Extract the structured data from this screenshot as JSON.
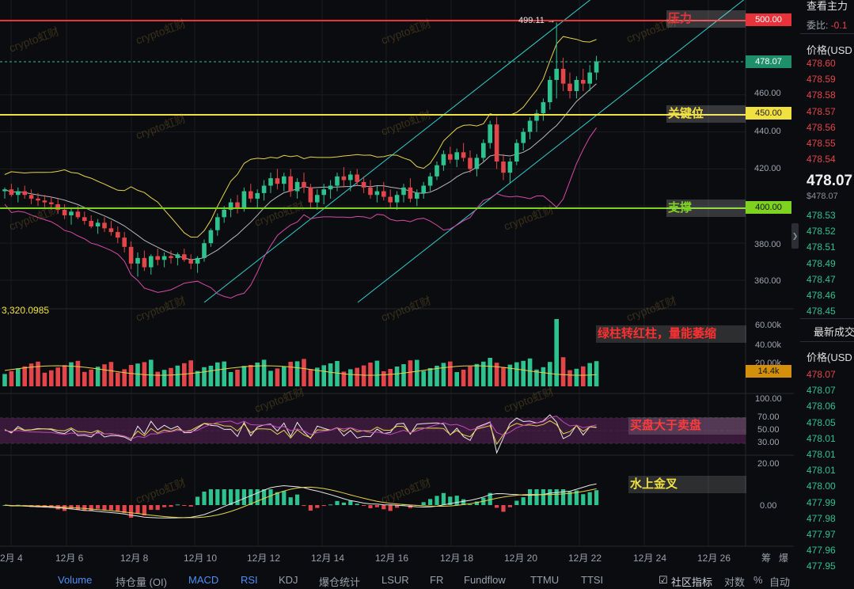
{
  "price_axis": {
    "ticks": [
      "460.00",
      "440.00",
      "420.00",
      "400.00",
      "380.00",
      "360.00"
    ],
    "current_price": "478.07",
    "resistance_price": "500.00",
    "key_price": "450.00",
    "support_price": "400.00"
  },
  "high_label": "499.11 →",
  "low_value_label": "3,320.0985",
  "level_labels": {
    "resistance": "压力",
    "key": "关键位",
    "support": "支撑"
  },
  "volume_axis": {
    "ticks": [
      "60.00k",
      "40.00k",
      "20.00k"
    ],
    "current": "14.4k"
  },
  "rsi_axis": {
    "ticks": [
      "100.00",
      "70.00",
      "50.00",
      "30.00"
    ]
  },
  "macd_axis": {
    "ticks": [
      "20.00",
      "0.00"
    ]
  },
  "annotations": {
    "volume": "绿柱转红柱，量能萎缩",
    "rsi": "买盘大于卖盘",
    "macd": "水上金叉"
  },
  "x_axis": [
    "2月 4",
    "12月 6",
    "12月 8",
    "12月 10",
    "12月 12",
    "12月 14",
    "12月 16",
    "12月 18",
    "12月 20",
    "12月 22",
    "12月 24",
    "12月 26"
  ],
  "x_axis_right": [
    "筹",
    "爆"
  ],
  "watermark": "crypto虹财",
  "bottom_tabs": [
    "Volume",
    "持仓量 (OI)",
    "MACD",
    "RSI",
    "KDJ",
    "爆仓统计",
    "LSUR",
    "FR",
    "Fundflow",
    "TTMU",
    "TTSI"
  ],
  "bottom_right": {
    "community": "社区指标",
    "log": "对数",
    "percent": "%",
    "auto": "自动"
  },
  "right_panel": {
    "header": "查看主力",
    "committee_label": "委比:",
    "committee_value": "-0.1",
    "price_col": "价格(USD",
    "asks": [
      "478.60",
      "478.59",
      "478.58",
      "478.57",
      "478.56",
      "478.55",
      "478.54"
    ],
    "mid_price": "478.07",
    "mid_usd": "$478.07",
    "bids": [
      "478.53",
      "478.52",
      "478.51",
      "478.49",
      "478.47",
      "478.46",
      "478.45"
    ],
    "trades_title": "最新成交",
    "trades_price_col": "价格(USD",
    "trades": [
      "478.07",
      "478.07",
      "478.06",
      "478.05",
      "478.01",
      "478.01",
      "478.01",
      "478.00",
      "477.99",
      "477.98",
      "477.97",
      "477.96",
      "477.95"
    ]
  },
  "colors": {
    "up": "#e2454a",
    "down": "#2ec28e",
    "resistance": "#e8333a",
    "key": "#f0e040",
    "support": "#7ed321",
    "accent": "#4c8ef7"
  },
  "chart_data": {
    "type": "candlestick",
    "price_range": [
      350,
      510
    ],
    "levels": {
      "resistance": 500,
      "key": 450,
      "support": 400
    },
    "candles": [
      [
        408,
        410,
        404,
        409
      ],
      [
        409,
        412,
        405,
        406
      ],
      [
        406,
        410,
        402,
        408
      ],
      [
        408,
        411,
        404,
        406
      ],
      [
        406,
        409,
        401,
        404
      ],
      [
        404,
        407,
        400,
        403
      ],
      [
        403,
        406,
        399,
        402
      ],
      [
        402,
        405,
        398,
        401
      ],
      [
        401,
        404,
        396,
        398
      ],
      [
        398,
        401,
        393,
        395
      ],
      [
        395,
        399,
        390,
        397
      ],
      [
        397,
        400,
        393,
        394
      ],
      [
        394,
        397,
        390,
        392
      ],
      [
        392,
        395,
        388,
        389
      ],
      [
        389,
        393,
        385,
        391
      ],
      [
        391,
        394,
        386,
        388
      ],
      [
        388,
        392,
        384,
        386
      ],
      [
        386,
        389,
        380,
        383
      ],
      [
        383,
        386,
        375,
        378
      ],
      [
        378,
        381,
        366,
        369
      ],
      [
        369,
        375,
        362,
        372
      ],
      [
        372,
        376,
        365,
        367
      ],
      [
        367,
        374,
        363,
        373
      ],
      [
        373,
        377,
        368,
        371
      ],
      [
        371,
        375,
        367,
        373
      ],
      [
        373,
        376,
        369,
        372
      ],
      [
        372,
        375,
        368,
        374
      ],
      [
        374,
        377,
        370,
        371
      ],
      [
        371,
        374,
        366,
        369
      ],
      [
        369,
        373,
        364,
        372
      ],
      [
        372,
        382,
        370,
        380
      ],
      [
        380,
        388,
        378,
        387
      ],
      [
        387,
        396,
        384,
        394
      ],
      [
        394,
        400,
        391,
        398
      ],
      [
        398,
        404,
        394,
        402
      ],
      [
        402,
        406,
        396,
        399
      ],
      [
        399,
        410,
        397,
        408
      ],
      [
        408,
        412,
        402,
        404
      ],
      [
        404,
        409,
        399,
        407
      ],
      [
        407,
        414,
        403,
        411
      ],
      [
        411,
        418,
        407,
        415
      ],
      [
        415,
        420,
        409,
        412
      ],
      [
        412,
        418,
        408,
        416
      ],
      [
        416,
        420,
        405,
        408
      ],
      [
        408,
        415,
        404,
        413
      ],
      [
        413,
        418,
        407,
        410
      ],
      [
        410,
        412,
        399,
        402
      ],
      [
        402,
        409,
        398,
        406
      ],
      [
        406,
        412,
        401,
        409
      ],
      [
        409,
        414,
        404,
        411
      ],
      [
        411,
        418,
        408,
        416
      ],
      [
        416,
        421,
        410,
        414
      ],
      [
        414,
        419,
        408,
        417
      ],
      [
        417,
        420,
        411,
        413
      ],
      [
        413,
        416,
        407,
        410
      ],
      [
        410,
        414,
        404,
        406
      ],
      [
        406,
        411,
        402,
        408
      ],
      [
        408,
        413,
        403,
        405
      ],
      [
        405,
        409,
        399,
        402
      ],
      [
        402,
        408,
        398,
        406
      ],
      [
        406,
        412,
        402,
        410
      ],
      [
        410,
        415,
        402,
        404
      ],
      [
        404,
        409,
        400,
        407
      ],
      [
        407,
        413,
        404,
        411
      ],
      [
        411,
        418,
        408,
        416
      ],
      [
        416,
        424,
        414,
        422
      ],
      [
        422,
        430,
        419,
        428
      ],
      [
        428,
        432,
        423,
        425
      ],
      [
        425,
        431,
        421,
        429
      ],
      [
        429,
        434,
        424,
        426
      ],
      [
        426,
        430,
        418,
        420
      ],
      [
        420,
        428,
        416,
        426
      ],
      [
        426,
        436,
        424,
        434
      ],
      [
        434,
        446,
        431,
        444
      ],
      [
        444,
        448,
        420,
        424
      ],
      [
        424,
        428,
        414,
        418
      ],
      [
        418,
        426,
        412,
        424
      ],
      [
        424,
        436,
        422,
        434
      ],
      [
        434,
        442,
        430,
        440
      ],
      [
        440,
        448,
        436,
        446
      ],
      [
        446,
        452,
        440,
        450
      ],
      [
        450,
        458,
        446,
        456
      ],
      [
        456,
        470,
        452,
        468
      ],
      [
        468,
        499,
        458,
        474
      ],
      [
        474,
        480,
        462,
        466
      ],
      [
        466,
        472,
        458,
        462
      ],
      [
        462,
        470,
        458,
        468
      ],
      [
        468,
        474,
        462,
        466
      ],
      [
        466,
        476,
        462,
        472
      ],
      [
        472,
        481,
        468,
        478
      ]
    ]
  }
}
